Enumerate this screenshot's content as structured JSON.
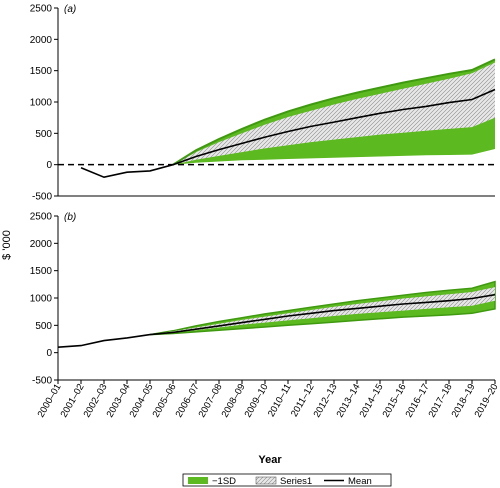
{
  "chart_data": [
    {
      "panel_label": "(a)",
      "type": "area",
      "ylabel": "$ '000",
      "ylim": [
        -500,
        2500
      ],
      "yticks": [
        -500,
        0,
        500,
        1000,
        1500,
        2000,
        2500
      ],
      "zero_line": "dashed",
      "categories": [
        "2000–01",
        "2001–02",
        "2002–03",
        "2003–04",
        "2004–05",
        "2005–06",
        "2006–07",
        "2007–08",
        "2008–09",
        "2009–10",
        "2010–11",
        "2011–12",
        "2012–13",
        "2013–14",
        "2014–15",
        "2015–16",
        "2016–17",
        "2017–18",
        "2018–19",
        "2019–20"
      ],
      "series": [
        {
          "name": "Mean",
          "values": [
            null,
            -50,
            -200,
            -120,
            -100,
            0,
            130,
            240,
            340,
            440,
            530,
            610,
            680,
            750,
            820,
            880,
            930,
            990,
            1040,
            1200
          ]
        },
        {
          "name": "−1SD",
          "note_lower": true,
          "values": [
            null,
            null,
            null,
            null,
            null,
            0,
            80,
            140,
            200,
            260,
            310,
            360,
            400,
            440,
            480,
            510,
            540,
            570,
            600,
            750
          ]
        },
        {
          "name": "band_lower",
          "values": [
            null,
            null,
            null,
            null,
            null,
            0,
            30,
            50,
            70,
            80,
            90,
            100,
            110,
            120,
            130,
            140,
            150,
            155,
            160,
            250
          ]
        },
        {
          "name": "Series1",
          "values": [
            null,
            null,
            null,
            null,
            null,
            0,
            200,
            360,
            500,
            640,
            760,
            860,
            960,
            1050,
            1130,
            1210,
            1290,
            1370,
            1460,
            1630
          ]
        },
        {
          "name": "band_upper",
          "values": [
            null,
            null,
            null,
            null,
            null,
            0,
            230,
            410,
            570,
            720,
            850,
            960,
            1060,
            1150,
            1230,
            1310,
            1380,
            1450,
            1510,
            1680
          ]
        }
      ]
    },
    {
      "panel_label": "(b)",
      "type": "area",
      "ylabel": "$ '000",
      "xlabel": "Year",
      "ylim": [
        -500,
        2500
      ],
      "yticks": [
        -500,
        0,
        500,
        1000,
        1500,
        2000,
        2500
      ],
      "categories": [
        "2000–01",
        "2001–02",
        "2002–03",
        "2003–04",
        "2004–05",
        "2005–06",
        "2006–07",
        "2007–08",
        "2008–09",
        "2009–10",
        "2010–11",
        "2011–12",
        "2012–13",
        "2013–14",
        "2014–15",
        "2015–16",
        "2016–17",
        "2017–18",
        "2018–19",
        "2019–20"
      ],
      "series": [
        {
          "name": "Mean",
          "values": [
            100,
            130,
            220,
            270,
            330,
            370,
            430,
            490,
            550,
            610,
            670,
            720,
            770,
            810,
            850,
            890,
            920,
            950,
            990,
            1060
          ]
        },
        {
          "name": "green_lower",
          "values": [
            null,
            null,
            null,
            null,
            330,
            350,
            380,
            410,
            440,
            470,
            500,
            530,
            560,
            590,
            620,
            650,
            670,
            690,
            720,
            800
          ]
        },
        {
          "name": "hatch_lower",
          "values": [
            null,
            null,
            null,
            null,
            330,
            360,
            410,
            460,
            510,
            550,
            590,
            630,
            670,
            710,
            740,
            770,
            800,
            830,
            860,
            950
          ]
        },
        {
          "name": "hatch_upper",
          "values": [
            null,
            null,
            null,
            null,
            330,
            390,
            460,
            530,
            600,
            660,
            720,
            780,
            840,
            890,
            940,
            990,
            1030,
            1070,
            1110,
            1200
          ]
        },
        {
          "name": "green_upper",
          "values": [
            null,
            null,
            null,
            null,
            330,
            400,
            490,
            570,
            640,
            710,
            770,
            830,
            890,
            950,
            1000,
            1050,
            1100,
            1140,
            1180,
            1300
          ]
        }
      ]
    }
  ],
  "legend": {
    "placement": "bottom-center",
    "items": [
      {
        "label": "−1SD",
        "swatch": "green"
      },
      {
        "label": "Series1",
        "swatch": "hatch"
      },
      {
        "label": "Mean",
        "swatch": "line"
      }
    ]
  },
  "colors": {
    "green": "#5cb91f",
    "green_edge": "#3f9a10",
    "hatch_fill": "#e6e6e6",
    "hatch_line": "#8a8a8a",
    "mean": "#000000"
  }
}
